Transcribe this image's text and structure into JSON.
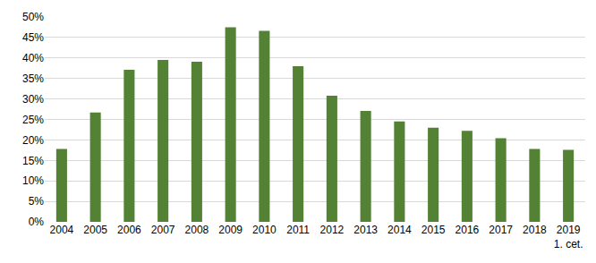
{
  "chart_data": {
    "type": "bar",
    "categories": [
      "2004",
      "2005",
      "2006",
      "2007",
      "2008",
      "2009",
      "2010",
      "2011",
      "2012",
      "2013",
      "2014",
      "2015",
      "2016",
      "2017",
      "2018",
      "2019\n1. cet."
    ],
    "values": [
      17.8,
      26.7,
      37.1,
      39.5,
      39.1,
      47.5,
      46.6,
      38.0,
      30.8,
      27.1,
      24.5,
      23.0,
      22.2,
      20.4,
      17.8,
      17.6
    ],
    "color": "#548235",
    "ylim": [
      0,
      50
    ],
    "yticks": [
      {
        "value": 0,
        "label": "0%"
      },
      {
        "value": 5,
        "label": "5%"
      },
      {
        "value": 10,
        "label": "10%"
      },
      {
        "value": 15,
        "label": "15%"
      },
      {
        "value": 20,
        "label": "20%"
      },
      {
        "value": 25,
        "label": "25%"
      },
      {
        "value": 30,
        "label": "30%"
      },
      {
        "value": 35,
        "label": "35%"
      },
      {
        "value": 40,
        "label": "40%"
      },
      {
        "value": 45,
        "label": "45%"
      },
      {
        "value": 50,
        "label": "50%"
      }
    ],
    "grid": true
  }
}
